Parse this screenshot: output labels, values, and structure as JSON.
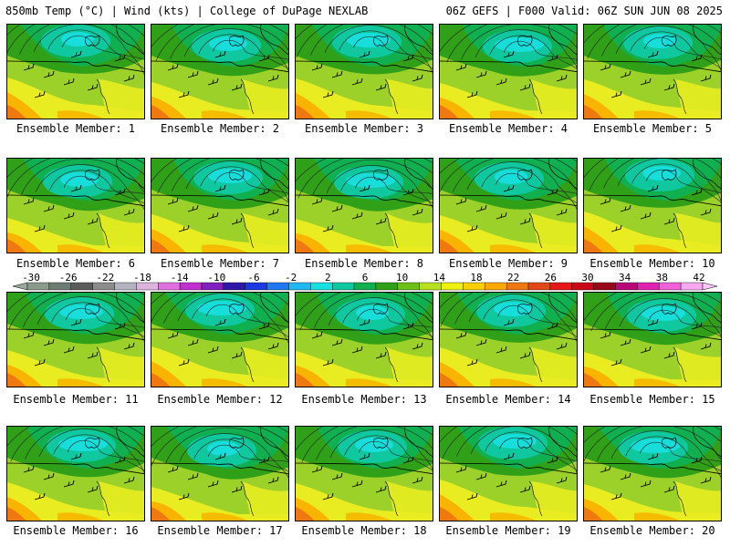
{
  "header": {
    "left": "850mb Temp (°C) | Wind (kts) | College of DuPage NEXLAB",
    "right": "06Z GEFS | F000 Valid: 06Z SUN JUN 08 2025"
  },
  "members": [
    {
      "label": "Ensemble Member: 1"
    },
    {
      "label": "Ensemble Member: 2"
    },
    {
      "label": "Ensemble Member: 3"
    },
    {
      "label": "Ensemble Member: 4"
    },
    {
      "label": "Ensemble Member: 5"
    },
    {
      "label": "Ensemble Member: 6"
    },
    {
      "label": "Ensemble Member: 7"
    },
    {
      "label": "Ensemble Member: 8"
    },
    {
      "label": "Ensemble Member: 9"
    },
    {
      "label": "Ensemble Member: 10"
    },
    {
      "label": "Ensemble Member: 11"
    },
    {
      "label": "Ensemble Member: 12"
    },
    {
      "label": "Ensemble Member: 13"
    },
    {
      "label": "Ensemble Member: 14"
    },
    {
      "label": "Ensemble Member: 15"
    },
    {
      "label": "Ensemble Member: 16"
    },
    {
      "label": "Ensemble Member: 17"
    },
    {
      "label": "Ensemble Member: 18"
    },
    {
      "label": "Ensemble Member: 19"
    },
    {
      "label": "Ensemble Member: 20"
    }
  ],
  "colorbar": {
    "ticks": [
      "-30",
      "-26",
      "-22",
      "-18",
      "-14",
      "-10",
      "-6",
      "-2",
      "2",
      "6",
      "10",
      "14",
      "18",
      "22",
      "26",
      "30",
      "34",
      "38",
      "42"
    ],
    "colors": [
      "#8c9a8c",
      "#6c7c74",
      "#5c5c5c",
      "#8c8c8c",
      "#b4b4c0",
      "#dcb4dc",
      "#e070e0",
      "#c030d0",
      "#8020c0",
      "#3018a8",
      "#1c38e0",
      "#2078f0",
      "#20b8f0",
      "#18e0e0",
      "#10c8a0",
      "#10b050",
      "#30a018",
      "#6cc018",
      "#b8e020",
      "#f0f010",
      "#f8d000",
      "#f8a800",
      "#f07810",
      "#e04818",
      "#e81818",
      "#c80818",
      "#980818",
      "#b80878",
      "#e020b0",
      "#f060d8",
      "#f8a8f0"
    ]
  },
  "map_colors": {
    "base": "#9cd12a",
    "dark_green": "#30a018",
    "mid_green": "#10b050",
    "teal": "#10c8a0",
    "cyan": "#18e0e0",
    "yellow": "#e8ec20",
    "orange": "#f8b400",
    "dark_orange": "#f07810"
  }
}
